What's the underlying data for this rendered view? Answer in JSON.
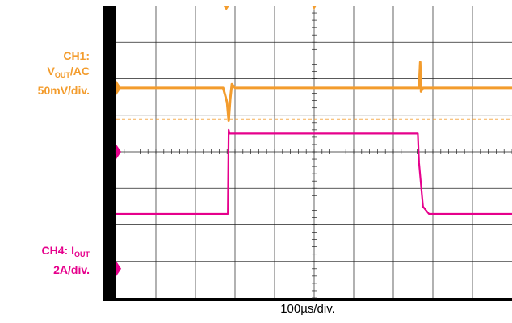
{
  "labels": {
    "ch1_name": "CH1:",
    "ch1_v": "V",
    "ch1_sub": "OUT",
    "ch1_coupling": "/AC",
    "ch1_scale": "50mV/div.",
    "ch4_name": "CH4: I",
    "ch4_sub": "OUT",
    "ch4_scale": "2A/div.",
    "timebase": "100µs/div."
  },
  "colors": {
    "ch1": "#F39C2D",
    "ch4": "#E6008C",
    "background": "#000000",
    "grid": "#ffffff"
  },
  "chart_data": {
    "type": "line",
    "grid": true,
    "divisions": {
      "x": 10,
      "y": 8
    },
    "xlim": [
      0,
      1000
    ],
    "series": [
      {
        "channel": "CH1",
        "x": [
          0,
          270,
          280,
          284,
          288,
          292,
          300,
          320,
          700,
          765,
          768,
          770,
          775,
          790,
          1000
        ],
        "y": [
          0,
          0,
          -0.4,
          -0.9,
          -0.3,
          0.1,
          0,
          0,
          0,
          0,
          0.7,
          -0.1,
          0,
          0,
          0
        ]
      },
      {
        "channel": "CH4",
        "x": [
          0,
          271,
          282,
          284,
          286,
          760,
          762,
          765,
          775,
          790,
          1000
        ],
        "y": [
          0,
          0,
          0,
          2.3,
          2.2,
          2.2,
          2.2,
          1.4,
          0.2,
          0,
          0
        ]
      }
    ]
  }
}
